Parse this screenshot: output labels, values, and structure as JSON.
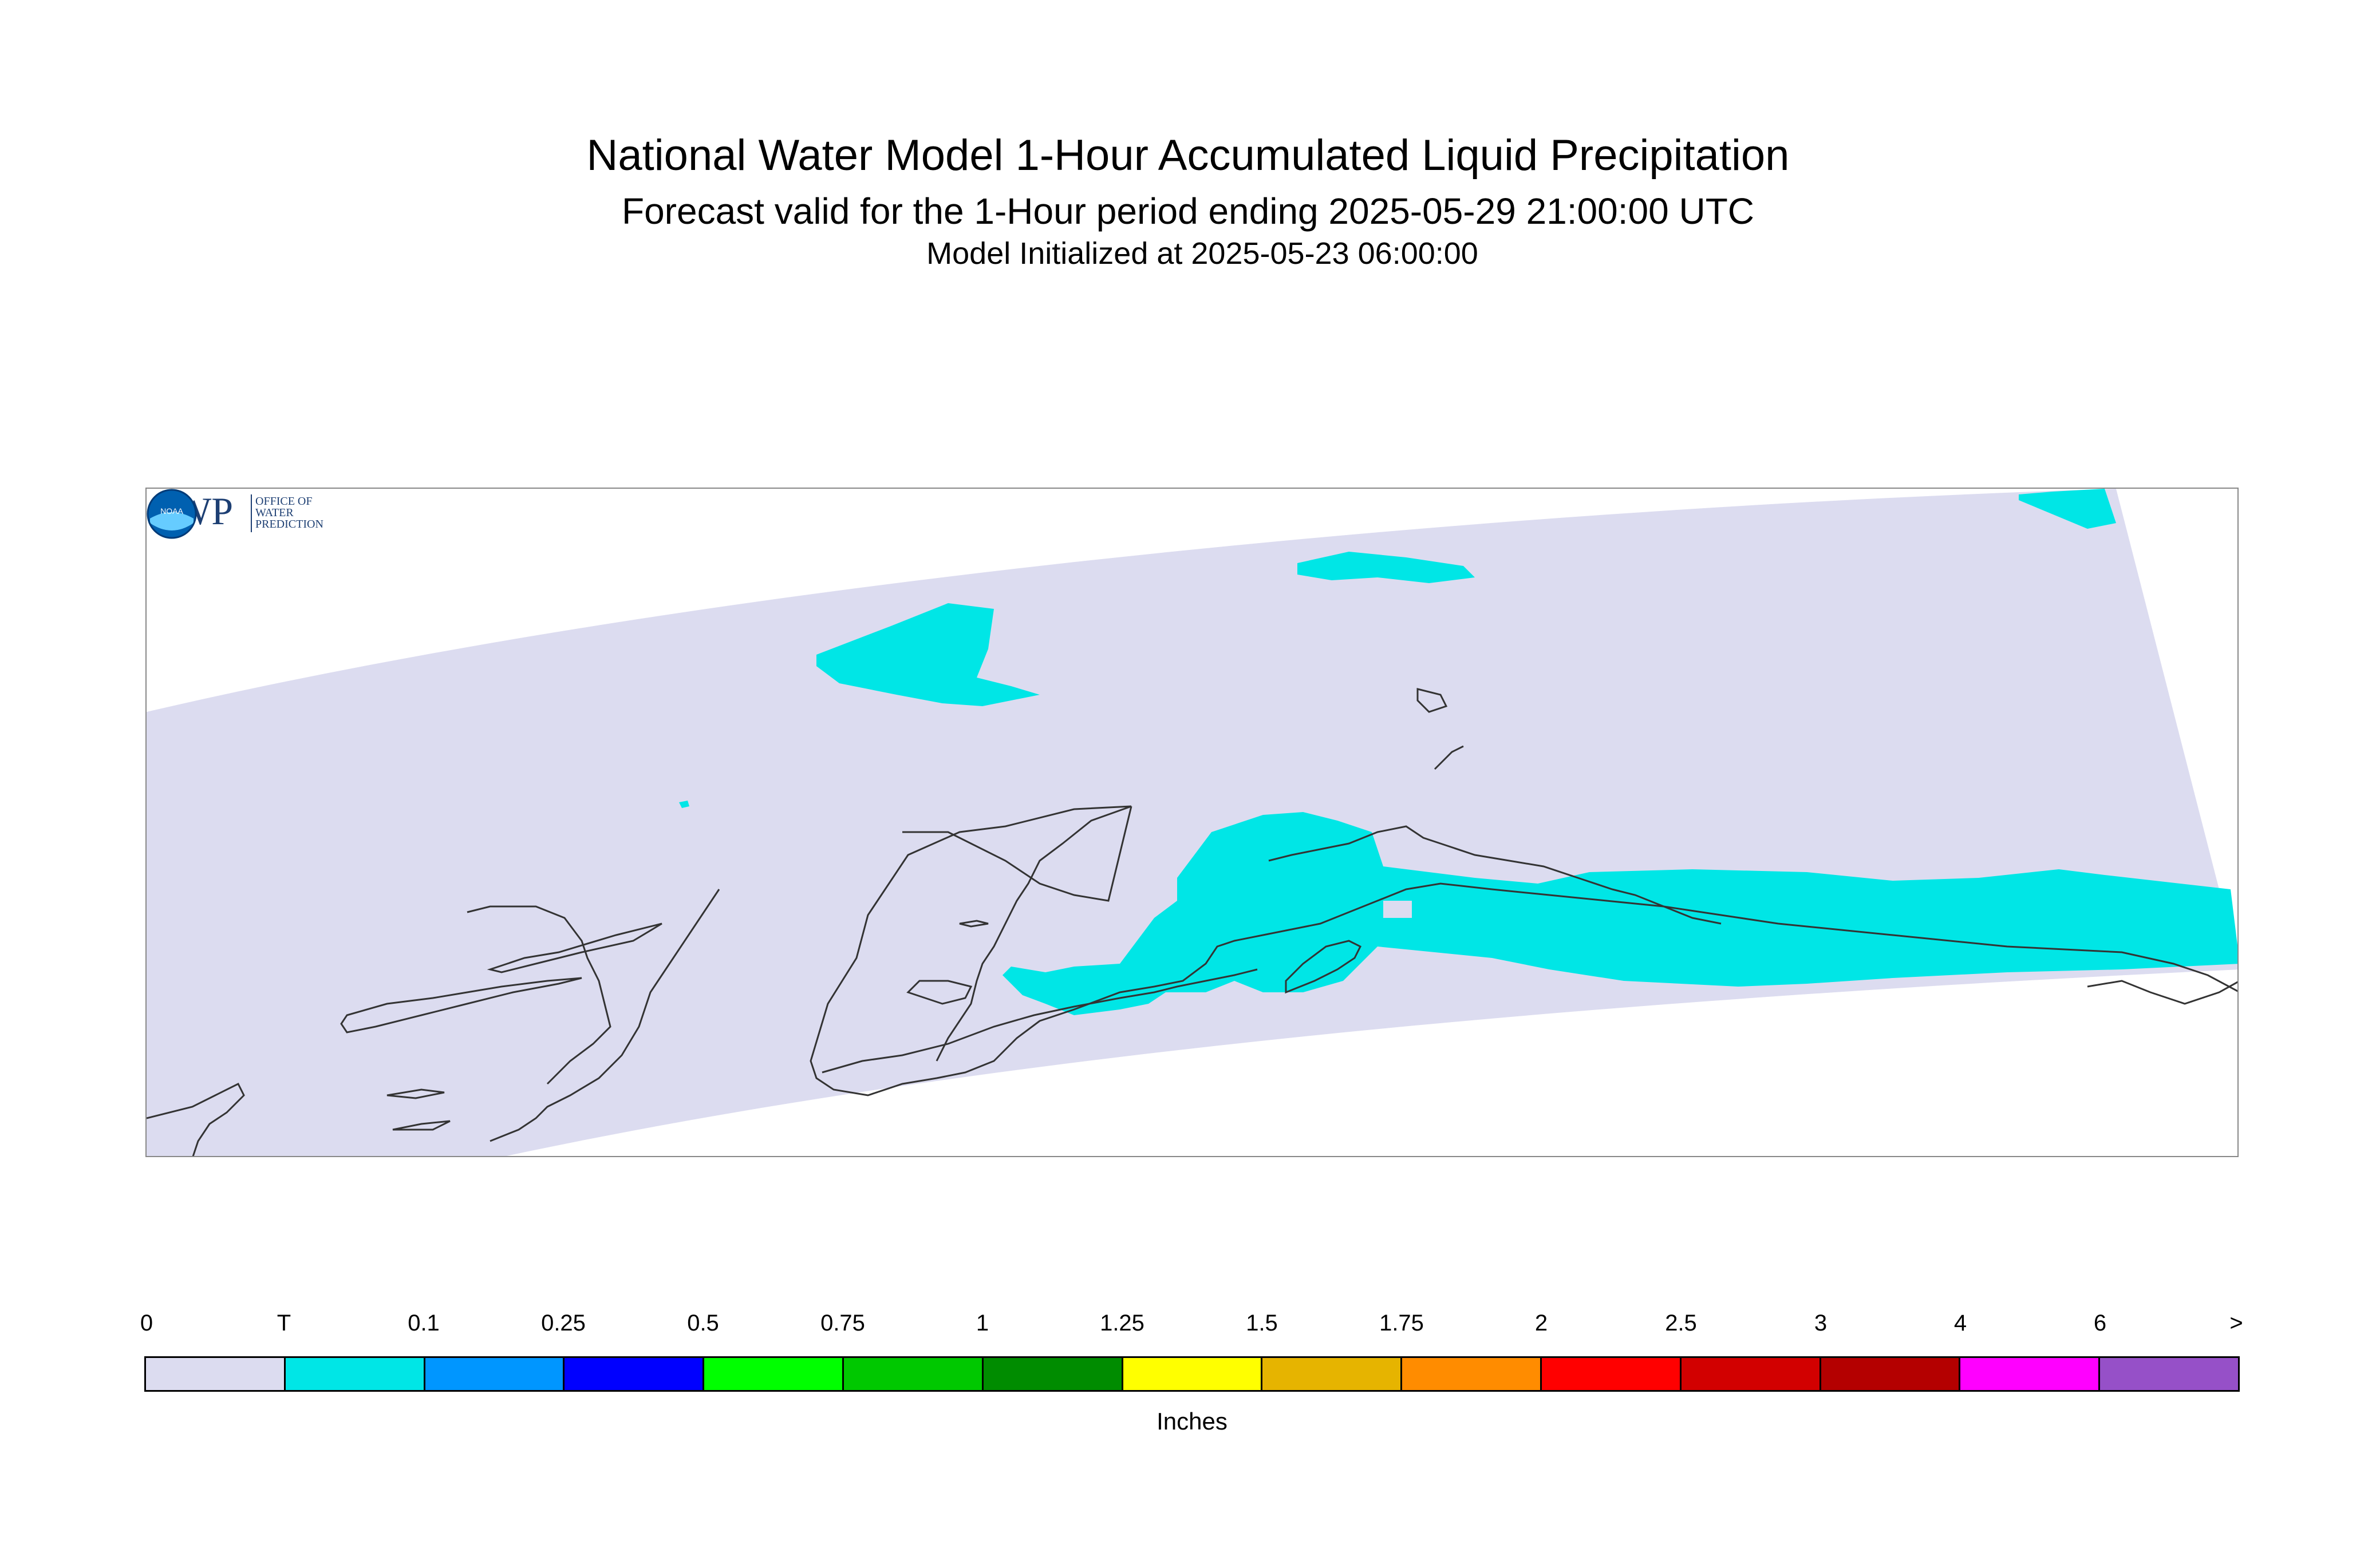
{
  "title": "National Water Model 1-Hour Accumulated Liquid Precipitation",
  "subtitle": "Forecast valid for the 1-Hour period ending 2025-05-29 21:00:00 UTC",
  "init_line": "Model Initialized at 2025-05-23 06:00:00",
  "colors": {
    "domain_fill": "#dcdcf0",
    "precip_trace": "#00e6e6",
    "coastline": "#333333"
  },
  "logos": {
    "owp_mark": "OWP",
    "owp_text": [
      "OFFICE OF",
      "WATER",
      "PREDICTION"
    ],
    "noaa_text": "NOAA"
  },
  "legend": {
    "tick_labels": [
      "0",
      "T",
      "0.1",
      "0.25",
      "0.5",
      "0.75",
      "1",
      "1.25",
      "1.5",
      "1.75",
      "2",
      "2.5",
      "3",
      "4",
      "6",
      ">"
    ],
    "colors": [
      "#dcdcf0",
      "#00e6e6",
      "#0096ff",
      "#0000ff",
      "#00ff00",
      "#00c800",
      "#008c00",
      "#ffff00",
      "#e6b400",
      "#ff8c00",
      "#ff0000",
      "#d20000",
      "#b40000",
      "#ff00ff",
      "#9650c8"
    ],
    "units": "Inches"
  }
}
